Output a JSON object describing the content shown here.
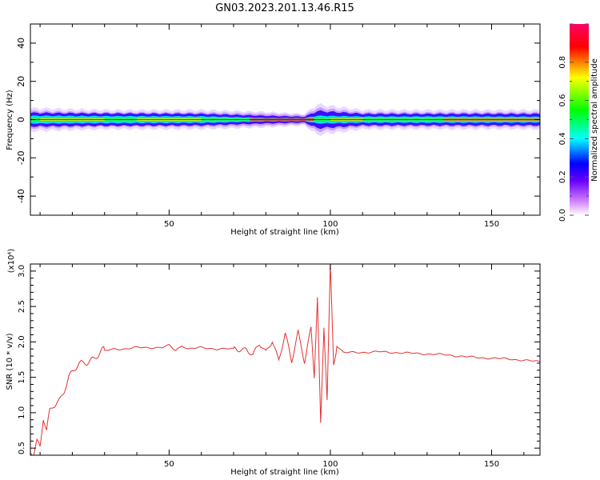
{
  "title": "GN03.2023.201.13.46.R15",
  "chart_data": [
    {
      "type": "heatmap",
      "title": "GN03.2023.201.13.46.R15",
      "xlabel": "Height of straight line (km)",
      "ylabel": "Frequency (Hz)",
      "xlim": [
        7,
        165
      ],
      "ylim": [
        -50,
        50
      ],
      "x_ticks": [
        50,
        100,
        150
      ],
      "y_ticks": [
        -40,
        -20,
        0,
        20,
        40
      ],
      "colorbar": {
        "label": "Normalized spectral amplitude",
        "range": [
          0,
          1
        ],
        "ticks": [
          0.0,
          0.2,
          0.4,
          0.6,
          0.8
        ],
        "colormap": [
          "#ffffff",
          "#cc77ff",
          "#6600ff",
          "#0000ff",
          "#00ffff",
          "#00ff00",
          "#ffff00",
          "#ff0000",
          "#ff0066"
        ]
      },
      "band_half_width_hz": [
        {
          "x": 7,
          "purple": 6,
          "blue": 3.5,
          "green": 2.0
        },
        {
          "x": 30,
          "purple": 5,
          "blue": 3.2,
          "green": 1.8
        },
        {
          "x": 60,
          "purple": 5,
          "blue": 3.0,
          "green": 1.7
        },
        {
          "x": 80,
          "purple": 4,
          "blue": 2.0,
          "green": 0.9
        },
        {
          "x": 92,
          "purple": 3,
          "blue": 1.5,
          "green": 0.8
        },
        {
          "x": 96,
          "purple": 8,
          "blue": 4.5,
          "green": 2.0
        },
        {
          "x": 110,
          "purple": 5,
          "blue": 3.0,
          "green": 1.6
        },
        {
          "x": 140,
          "purple": 5,
          "blue": 3.0,
          "green": 1.6
        },
        {
          "x": 165,
          "purple": 5,
          "blue": 3.0,
          "green": 1.5
        }
      ]
    },
    {
      "type": "line",
      "xlabel": "Height of straight line (km)",
      "ylabel": "SNR (10 * v/v)",
      "y_scale_label": "(x10⁴)",
      "xlim": [
        7,
        165
      ],
      "ylim": [
        0.4,
        3.1
      ],
      "x_ticks": [
        50,
        100,
        150
      ],
      "y_ticks": [
        0.5,
        1.0,
        1.5,
        2.0,
        2.5,
        3.0
      ],
      "color": "#e53030",
      "series": [
        {
          "x": [
            7,
            8,
            9,
            10,
            11,
            12,
            13,
            14,
            15,
            16,
            17,
            18,
            19,
            20,
            22,
            24,
            26,
            28,
            30,
            33,
            36,
            40,
            44,
            48,
            50,
            52,
            54,
            56,
            60,
            65,
            70,
            74,
            76,
            78,
            80,
            82,
            84,
            86,
            88,
            90,
            92,
            94,
            95,
            96,
            97,
            98,
            99,
            100,
            101,
            102,
            104,
            108,
            115,
            125,
            135,
            145,
            155,
            165
          ],
          "y": [
            0.5,
            0.45,
            0.6,
            0.5,
            0.9,
            0.7,
            1.0,
            1.1,
            1.15,
            1.2,
            1.3,
            1.4,
            1.5,
            1.55,
            1.65,
            1.72,
            1.78,
            1.83,
            1.87,
            1.9,
            1.9,
            1.92,
            1.92,
            1.92,
            1.95,
            1.88,
            1.95,
            1.9,
            1.92,
            1.9,
            1.9,
            1.92,
            1.8,
            1.95,
            1.85,
            2.05,
            1.75,
            2.1,
            1.7,
            2.15,
            1.75,
            2.2,
            1.5,
            2.6,
            0.8,
            2.2,
            1.2,
            3.1,
            1.7,
            1.95,
            1.85,
            1.85,
            1.86,
            1.84,
            1.82,
            1.78,
            1.76,
            1.72
          ]
        }
      ]
    }
  ]
}
